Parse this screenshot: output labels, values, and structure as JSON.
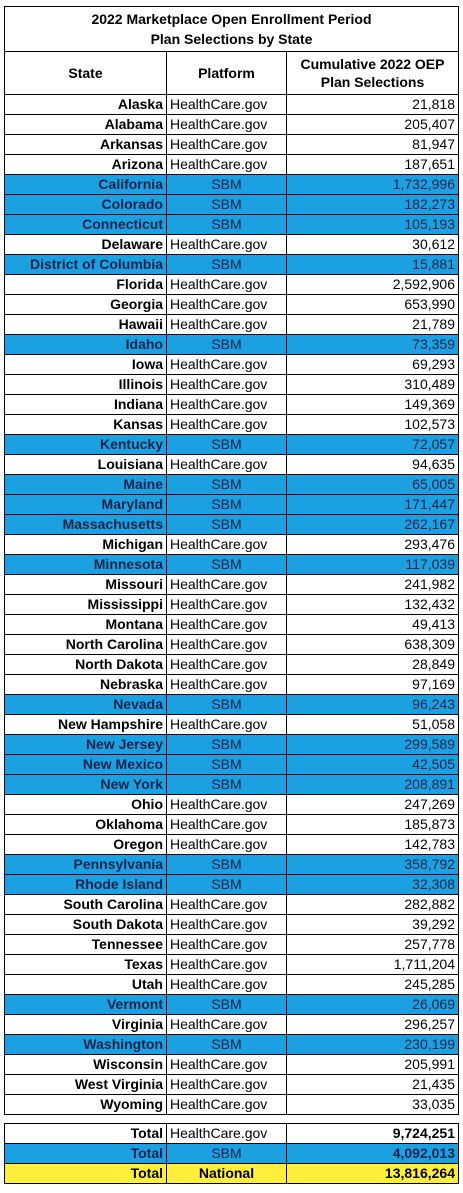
{
  "title": {
    "line1": "2022 Marketplace Open Enrollment Period",
    "line2": "Plan Selections by State"
  },
  "headers": {
    "state": "State",
    "platform": "Platform",
    "selections_line1": "Cumulative 2022 OEP",
    "selections_line2": "Plan Selections"
  },
  "colors": {
    "sbm_fill": "#1ba1e2",
    "sbm_text": "#15234a",
    "national_fill": "#ffef3c"
  },
  "rows": [
    {
      "state": "Alaska",
      "platform": "HealthCare.gov",
      "value": "21,818"
    },
    {
      "state": "Alabama",
      "platform": "HealthCare.gov",
      "value": "205,407"
    },
    {
      "state": "Arkansas",
      "platform": "HealthCare.gov",
      "value": "81,947"
    },
    {
      "state": "Arizona",
      "platform": "HealthCare.gov",
      "value": "187,651"
    },
    {
      "state": "California",
      "platform": "SBM",
      "value": "1,732,996"
    },
    {
      "state": "Colorado",
      "platform": "SBM",
      "value": "182,273"
    },
    {
      "state": "Connecticut",
      "platform": "SBM",
      "value": "105,193"
    },
    {
      "state": "Delaware",
      "platform": "HealthCare.gov",
      "value": "30,612"
    },
    {
      "state": "District of Columbia",
      "platform": "SBM",
      "value": "15,881"
    },
    {
      "state": "Florida",
      "platform": "HealthCare.gov",
      "value": "2,592,906"
    },
    {
      "state": "Georgia",
      "platform": "HealthCare.gov",
      "value": "653,990"
    },
    {
      "state": "Hawaii",
      "platform": "HealthCare.gov",
      "value": "21,789"
    },
    {
      "state": "Idaho",
      "platform": "SBM",
      "value": "73,359"
    },
    {
      "state": "Iowa",
      "platform": "HealthCare.gov",
      "value": "69,293"
    },
    {
      "state": "Illinois",
      "platform": "HealthCare.gov",
      "value": "310,489"
    },
    {
      "state": "Indiana",
      "platform": "HealthCare.gov",
      "value": "149,369"
    },
    {
      "state": "Kansas",
      "platform": "HealthCare.gov",
      "value": "102,573"
    },
    {
      "state": "Kentucky",
      "platform": "SBM",
      "value": "72,057"
    },
    {
      "state": "Louisiana",
      "platform": "HealthCare.gov",
      "value": "94,635"
    },
    {
      "state": "Maine",
      "platform": "SBM",
      "value": "65,005"
    },
    {
      "state": "Maryland",
      "platform": "SBM",
      "value": "171,447"
    },
    {
      "state": "Massachusetts",
      "platform": "SBM",
      "value": "262,167"
    },
    {
      "state": "Michigan",
      "platform": "HealthCare.gov",
      "value": "293,476"
    },
    {
      "state": "Minnesota",
      "platform": "SBM",
      "value": "117,039"
    },
    {
      "state": "Missouri",
      "platform": "HealthCare.gov",
      "value": "241,982"
    },
    {
      "state": "Mississippi",
      "platform": "HealthCare.gov",
      "value": "132,432"
    },
    {
      "state": "Montana",
      "platform": "HealthCare.gov",
      "value": "49,413"
    },
    {
      "state": "North Carolina",
      "platform": "HealthCare.gov",
      "value": "638,309"
    },
    {
      "state": "North Dakota",
      "platform": "HealthCare.gov",
      "value": "28,849"
    },
    {
      "state": "Nebraska",
      "platform": "HealthCare.gov",
      "value": "97,169"
    },
    {
      "state": "Nevada",
      "platform": "SBM",
      "value": "96,243"
    },
    {
      "state": "New Hampshire",
      "platform": "HealthCare.gov",
      "value": "51,058"
    },
    {
      "state": "New Jersey",
      "platform": "SBM",
      "value": "299,589"
    },
    {
      "state": "New Mexico",
      "platform": "SBM",
      "value": "42,505"
    },
    {
      "state": "New York",
      "platform": "SBM",
      "value": "208,891"
    },
    {
      "state": "Ohio",
      "platform": "HealthCare.gov",
      "value": "247,269"
    },
    {
      "state": "Oklahoma",
      "platform": "HealthCare.gov",
      "value": "185,873"
    },
    {
      "state": "Oregon",
      "platform": "HealthCare.gov",
      "value": "142,783"
    },
    {
      "state": "Pennsylvania",
      "platform": "SBM",
      "value": "358,792"
    },
    {
      "state": "Rhode Island",
      "platform": "SBM",
      "value": "32,308"
    },
    {
      "state": "South Carolina",
      "platform": "HealthCare.gov",
      "value": "282,882"
    },
    {
      "state": "South Dakota",
      "platform": "HealthCare.gov",
      "value": "39,292"
    },
    {
      "state": "Tennessee",
      "platform": "HealthCare.gov",
      "value": "257,778"
    },
    {
      "state": "Texas",
      "platform": "HealthCare.gov",
      "value": "1,711,204"
    },
    {
      "state": "Utah",
      "platform": "HealthCare.gov",
      "value": "245,285"
    },
    {
      "state": "Vermont",
      "platform": "SBM",
      "value": "26,069"
    },
    {
      "state": "Virginia",
      "platform": "HealthCare.gov",
      "value": "296,257"
    },
    {
      "state": "Washington",
      "platform": "SBM",
      "value": "230,199"
    },
    {
      "state": "Wisconsin",
      "platform": "HealthCare.gov",
      "value": "205,991"
    },
    {
      "state": "West Virginia",
      "platform": "HealthCare.gov",
      "value": "21,435"
    },
    {
      "state": "Wyoming",
      "platform": "HealthCare.gov",
      "value": "33,035"
    }
  ],
  "totals": [
    {
      "label": "Total",
      "platform": "HealthCare.gov",
      "value": "9,724,251"
    },
    {
      "label": "Total",
      "platform": "SBM",
      "value": "4,092,013"
    },
    {
      "label": "Total",
      "platform": "National",
      "value": "13,816,264"
    }
  ]
}
